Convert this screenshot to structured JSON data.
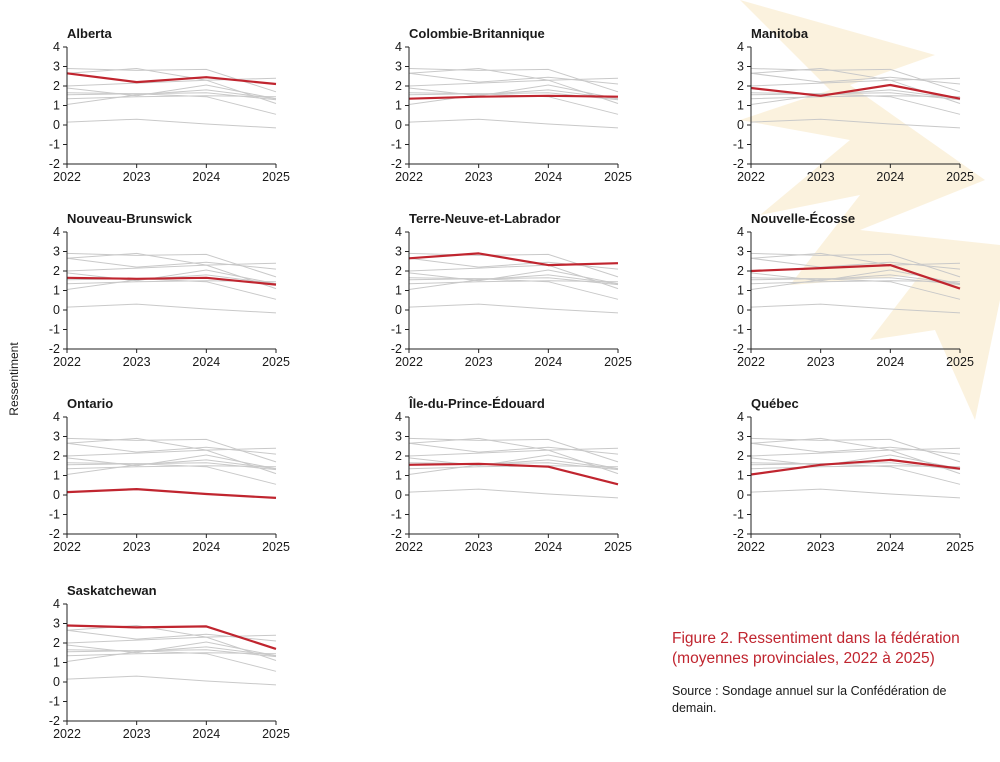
{
  "figure": {
    "caption": "Figure 2. Ressentiment dans la fédération (moyennes provinciales, 2022 à 2025)",
    "source": "Source : Sondage annuel sur la Confédération de demain.",
    "y_axis_label": "Ressentiment"
  },
  "colors": {
    "highlight": "#c0252f",
    "background_lines": "#c9c9c9",
    "axis": "#222222",
    "watermark": "#fbf1da"
  },
  "chart_data": {
    "type": "line",
    "x": [
      "2022",
      "2023",
      "2024",
      "2025"
    ],
    "yticks": [
      "4",
      "3",
      "2",
      "1",
      "0",
      "-1",
      "-2"
    ],
    "ylim": [
      -2,
      4
    ],
    "series": [
      {
        "name": "Alberta",
        "values": [
          2.65,
          2.2,
          2.45,
          2.1
        ]
      },
      {
        "name": "Colombie-Britannique",
        "values": [
          1.35,
          1.45,
          1.5,
          1.45
        ]
      },
      {
        "name": "Manitoba",
        "values": [
          1.9,
          1.5,
          2.05,
          1.35
        ]
      },
      {
        "name": "Nouveau-Brunswick",
        "values": [
          1.65,
          1.6,
          1.65,
          1.3
        ]
      },
      {
        "name": "Terre-Neuve-et-Labrador",
        "values": [
          2.65,
          2.9,
          2.3,
          2.4
        ]
      },
      {
        "name": "Nouvelle-Écosse",
        "values": [
          2.0,
          2.15,
          2.3,
          1.1
        ]
      },
      {
        "name": "Ontario",
        "values": [
          0.15,
          0.3,
          0.05,
          -0.15
        ]
      },
      {
        "name": "Île-du-Prince-Édouard",
        "values": [
          1.55,
          1.6,
          1.45,
          0.55
        ]
      },
      {
        "name": "Québec",
        "values": [
          1.05,
          1.55,
          1.8,
          1.35
        ]
      },
      {
        "name": "Saskatchewan",
        "values": [
          2.9,
          2.8,
          2.85,
          1.7
        ]
      }
    ]
  }
}
